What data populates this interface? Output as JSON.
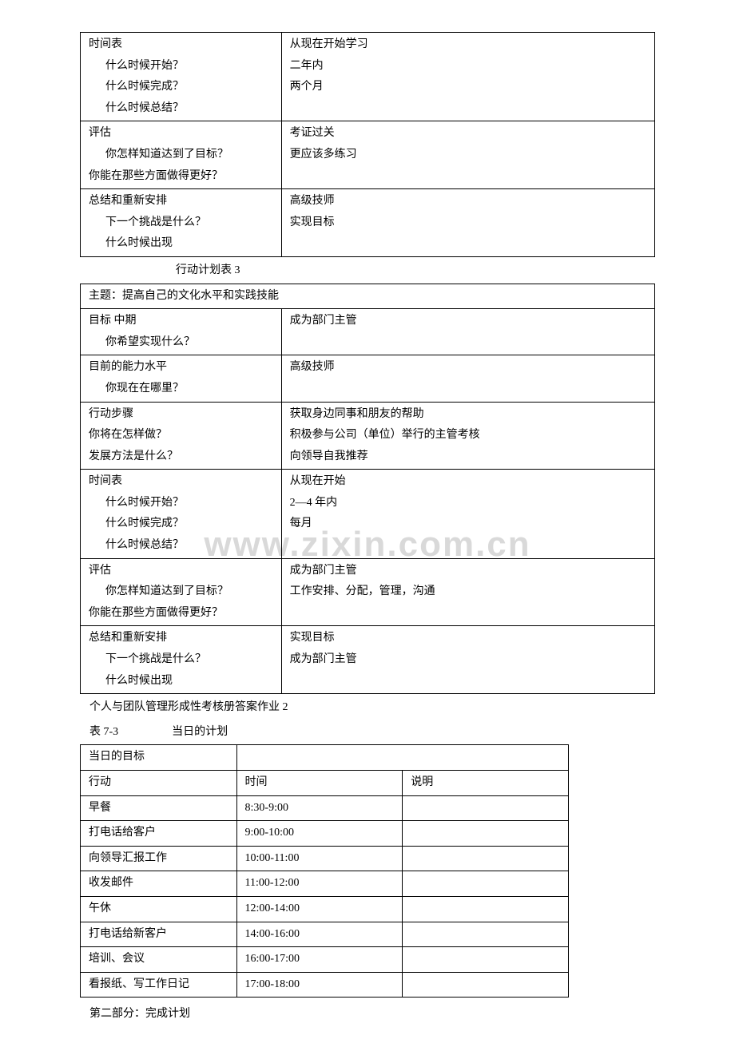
{
  "watermark": "www.zixin.com.cn",
  "table1": {
    "rows": [
      {
        "left_lines": [
          "时间表",
          "什么时候开始？",
          "什么时候完成？",
          "什么时候总结？"
        ],
        "left_indent": [
          false,
          true,
          true,
          true
        ],
        "right_lines": [
          "从现在开始学习",
          "二年内",
          "两个月",
          ""
        ]
      },
      {
        "left_lines": [
          "评估",
          "你怎样知道达到了目标？",
          "你能在那些方面做得更好？"
        ],
        "left_indent": [
          false,
          true,
          false
        ],
        "right_lines": [
          "考证过关",
          "更应该多练习",
          ""
        ]
      },
      {
        "left_lines": [
          "总结和重新安排",
          "下一个挑战是什么？",
          "什么时候出现"
        ],
        "left_indent": [
          false,
          true,
          true
        ],
        "right_lines": [
          "高级技师",
          "实现目标",
          ""
        ]
      }
    ]
  },
  "caption3": "行动计划表 3",
  "table2": {
    "theme": "主题：提高自己的文化水平和实践技能",
    "rows": [
      {
        "left_lines": [
          "目标 中期",
          "你希望实现什么？"
        ],
        "left_indent": [
          false,
          true
        ],
        "right_lines": [
          "成为部门主管",
          ""
        ]
      },
      {
        "left_lines": [
          "目前的能力水平",
          "你现在在哪里？"
        ],
        "left_indent": [
          false,
          true
        ],
        "right_lines": [
          "高级技师",
          ""
        ]
      },
      {
        "left_lines": [
          "行动步骤",
          "你将在怎样做？",
          "发展方法是什么？"
        ],
        "left_indent": [
          false,
          false,
          false
        ],
        "right_lines": [
          "获取身边同事和朋友的帮助",
          "积极参与公司（单位）举行的主管考核",
          "向领导自我推荐"
        ]
      },
      {
        "left_lines": [
          "时间表",
          "什么时候开始？",
          "什么时候完成？",
          "什么时候总结？"
        ],
        "left_indent": [
          false,
          true,
          true,
          true
        ],
        "right_lines": [
          "从现在开始",
          "2—4 年内",
          "每月",
          ""
        ]
      },
      {
        "left_lines": [
          "评估",
          "你怎样知道达到了目标？",
          "你能在那些方面做得更好？"
        ],
        "left_indent": [
          false,
          true,
          false
        ],
        "right_lines": [
          "成为部门主管",
          "工作安排、分配，管理，沟通",
          ""
        ]
      },
      {
        "left_lines": [
          "总结和重新安排",
          "下一个挑战是什么？",
          "什么时候出现"
        ],
        "left_indent": [
          false,
          true,
          true
        ],
        "right_lines": [
          "实现目标",
          "成为部门主管",
          ""
        ]
      }
    ]
  },
  "section2_title": "个人与团队管理形成性考核册答案作业 2",
  "schedule_caption_left": "表 7-3",
  "schedule_caption_right": "当日的计划",
  "schedule": {
    "header_goal": "当日的目标",
    "columns": [
      "行动",
      "时间",
      "说明"
    ],
    "rows": [
      [
        "早餐",
        "8:30-9:00",
        ""
      ],
      [
        "打电话给客户",
        "9:00-10:00",
        ""
      ],
      [
        "向领导汇报工作",
        "10:00-11:00",
        ""
      ],
      [
        "收发邮件",
        "11:00-12:00",
        ""
      ],
      [
        "午休",
        "12:00-14:00",
        ""
      ],
      [
        "打电话给新客户",
        "14:00-16:00",
        ""
      ],
      [
        "培训、会议",
        "16:00-17:00",
        ""
      ],
      [
        "看报纸、写工作日记",
        "17:00-18:00",
        ""
      ]
    ]
  },
  "part2": "第二部分：完成计划"
}
